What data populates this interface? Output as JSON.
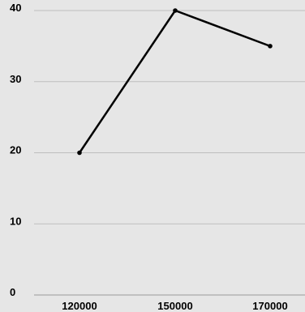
{
  "chart_data": {
    "type": "line",
    "title": "",
    "xlabel": "",
    "ylabel": "",
    "x": [
      120000,
      150000,
      170000
    ],
    "x_tick_labels": [
      "120000",
      "150000",
      "170000"
    ],
    "series": [
      {
        "values": [
          20,
          40,
          35
        ]
      }
    ],
    "y_ticks": [
      0,
      10,
      20,
      30,
      40
    ],
    "y_tick_labels": [
      "0",
      "10",
      "20",
      "30",
      "40"
    ],
    "ylim": [
      0,
      40
    ],
    "grid": true,
    "colors": {
      "background": "#e6e6e6",
      "line": "#000000",
      "grid": "#bdbdbd",
      "text": "#000000"
    }
  }
}
